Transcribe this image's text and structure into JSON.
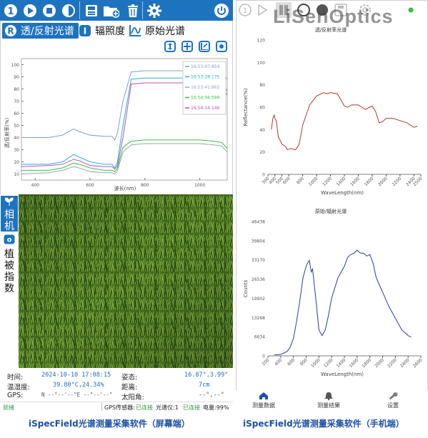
{
  "left_app": {
    "toolbar": {
      "icons": [
        "step-icon",
        "play-icon",
        "stop-icon",
        "half-circle-icon",
        "save-icon",
        "add-folder-icon",
        "trash-icon",
        "gear-icon",
        "power-icon"
      ],
      "step_glyph": "1"
    },
    "modes": [
      {
        "icon_letter": "R",
        "label": "透/反射光谱"
      },
      {
        "icon_letter": "I",
        "label": "辐照度"
      },
      {
        "icon_letter": "",
        "label": "原始光谱"
      }
    ],
    "zoom_icons": [
      "fit-vertical-icon",
      "pan-icon",
      "fit-horizontal-icon",
      "zoom-target-icon"
    ],
    "chart": {
      "ylabel": "透/反射率(%)",
      "xlabel": "波长(nm)",
      "x_ticks": [
        "400",
        "600",
        "800",
        "1000"
      ],
      "y_ticks": [
        "10",
        "20",
        "30",
        "40",
        "50",
        "60",
        "70",
        "80",
        "90",
        "100"
      ],
      "legend": [
        {
          "label": "16:53:07:854",
          "color": "#7f9fc9"
        },
        {
          "label": "16:53:28:175",
          "color": "#2ab0c8"
        },
        {
          "label": "16:53:41:862",
          "color": "#9aa4b5"
        },
        {
          "label": "16:54:04:599",
          "color": "#34c43c"
        },
        {
          "label": "16:54:14:146",
          "color": "#c54ac8"
        }
      ]
    },
    "side_tabs": [
      {
        "label": "相机"
      },
      {
        "icon_letter": "o",
        "label": "植被指数"
      }
    ],
    "info": {
      "time_label": "时间:",
      "time_value": "2024-10-10 17:08:15",
      "temp_label": "温湿度:",
      "temp_value": "39.80°C,24.34%",
      "gps_label": "GPS:",
      "gps_value": "N --°--'--\"E --°--'--\"",
      "pose_label": "姿态:",
      "pose_value": "16.87°,3.99°",
      "dist_label": "距离:",
      "dist_value": "7cm",
      "sun_label": "太阳角:",
      "sun_value": "--°,--°"
    },
    "status": {
      "ready": "就绪",
      "gps": "GPS传感器:",
      "gps_state": "已连接",
      "spec": "光谱仪:1",
      "spec_state": "已连接",
      "battery": "电量:99%"
    }
  },
  "right_app": {
    "toolbar_icons": [
      "step-icon",
      "play-icon",
      "layout-icon",
      "circle-icon",
      "half-circle-icon",
      "save-icon",
      "gear-icon",
      "status-dot-icon"
    ],
    "logo": "LiSenOptics",
    "chart_top": {
      "title": "透/反射率光谱",
      "ylabel": "Reflectance(%)",
      "xlabel": "WaveLength(nm)",
      "y_ticks": [
        "0",
        "20",
        "40",
        "60",
        "80",
        "100",
        "120"
      ],
      "x_ticks": [
        "300",
        "400",
        "500",
        "600",
        "800",
        "1000",
        "1200",
        "1400",
        "1600",
        "1800",
        "2000",
        "2200",
        "2400",
        "2500"
      ]
    },
    "chart_bottom": {
      "title": "原始/辐射光谱",
      "ylabel": "Counts",
      "xlabel": "WaveLength(nm)",
      "y_ticks": [
        "0",
        "6634",
        "13268",
        "19902",
        "26536",
        "33170",
        "39804",
        "46438"
      ],
      "x_ticks": [
        "200",
        "400",
        "600",
        "800",
        "1000",
        "1200",
        "1400",
        "1600",
        "1800",
        "2000",
        "2200",
        "2400",
        "2600"
      ]
    },
    "nav": [
      {
        "label": "测量数据",
        "icon": "home-icon"
      },
      {
        "label": "测量结果",
        "icon": "bell-icon"
      },
      {
        "label": "设置",
        "icon": "wrench-icon"
      }
    ]
  },
  "captions": {
    "left": "iSpecField光谱测量采集软件（屏幕端）",
    "right": "iSpecField光谱测量采集软件（手机端）"
  },
  "chart_data": [
    {
      "type": "line",
      "title": "",
      "xlabel": "波长(nm)",
      "ylabel": "透/反射率(%)",
      "xlim": [
        350,
        1100
      ],
      "ylim": [
        5,
        105
      ],
      "series": [
        {
          "name": "16:53:07:854",
          "x": [
            350,
            450,
            500,
            540,
            560,
            600,
            650,
            680,
            690,
            700,
            720,
            750,
            800,
            900,
            1000,
            1050,
            1080,
            1100
          ],
          "y": [
            40,
            40,
            42,
            47,
            45,
            42,
            41,
            41,
            38,
            44,
            70,
            94,
            95,
            95,
            95,
            95,
            94,
            88
          ]
        },
        {
          "name": "16:53:28:175",
          "x": [
            350,
            450,
            500,
            540,
            560,
            600,
            650,
            680,
            690,
            700,
            720,
            750,
            800,
            900,
            1000,
            1050,
            1080,
            1100
          ],
          "y": [
            18,
            18,
            20,
            26,
            24,
            20,
            18,
            18,
            15,
            20,
            50,
            88,
            89,
            89,
            89,
            88,
            87,
            78
          ]
        },
        {
          "name": "16:53:41:862",
          "x": [
            350,
            450,
            500,
            540,
            560,
            600,
            650,
            680,
            690,
            700,
            720,
            750,
            800,
            900,
            1000,
            1050,
            1080,
            1100
          ],
          "y": [
            10,
            11,
            13,
            16,
            15,
            12,
            11,
            11,
            10,
            13,
            28,
            34,
            35,
            35,
            35,
            34,
            33,
            28
          ]
        },
        {
          "name": "16:54:04:599",
          "x": [
            350,
            450,
            500,
            540,
            560,
            600,
            650,
            680,
            690,
            700,
            720,
            750,
            800,
            900,
            1000,
            1050,
            1080,
            1100
          ],
          "y": [
            13,
            13,
            15,
            19,
            18,
            15,
            13,
            13,
            12,
            15,
            32,
            37,
            38,
            38,
            38,
            37,
            36,
            31
          ]
        },
        {
          "name": "16:54:14:146",
          "x": [
            350,
            450,
            500,
            540,
            560,
            600,
            650,
            680,
            690,
            700,
            720,
            750,
            800,
            900,
            1000,
            1050,
            1080,
            1100
          ],
          "y": [
            16,
            17,
            18,
            22,
            21,
            17,
            16,
            16,
            14,
            17,
            40,
            84,
            85,
            85,
            85,
            84,
            83,
            75
          ]
        }
      ]
    },
    {
      "type": "line",
      "title": "透/反射率光谱",
      "xlabel": "WaveLength(nm)",
      "ylabel": "Reflectance(%)",
      "xlim": [
        300,
        2500
      ],
      "ylim": [
        0,
        120
      ],
      "series": [
        {
          "name": "",
          "x": [
            350,
            370,
            390,
            400,
            420,
            450,
            480,
            500,
            550,
            580,
            620,
            700,
            750,
            800,
            900,
            1000,
            1100,
            1150,
            1200,
            1300,
            1400,
            1450,
            1500,
            1600,
            1700,
            1800,
            1850,
            1900,
            1950,
            2000,
            2100,
            2200,
            2300,
            2350,
            2400,
            2450
          ],
          "y": [
            40,
            50,
            53,
            50,
            48,
            33,
            30,
            27,
            25,
            22,
            23,
            22,
            27,
            44,
            62,
            70,
            73,
            72,
            73,
            72,
            61,
            60,
            62,
            62,
            58,
            61,
            56,
            46,
            47,
            50,
            50,
            48,
            46,
            44,
            42,
            43
          ]
        }
      ]
    },
    {
      "type": "line",
      "title": "原始/辐射光谱",
      "xlabel": "WaveLength(nm)",
      "ylabel": "Counts",
      "xlim": [
        200,
        2600
      ],
      "ylim": [
        0,
        46438
      ],
      "series": [
        {
          "name": "",
          "x": [
            300,
            400,
            500,
            550,
            600,
            650,
            700,
            750,
            800,
            820,
            850,
            880,
            900,
            950,
            1000,
            1050,
            1100,
            1150,
            1200,
            1300,
            1400,
            1450,
            1500,
            1550,
            1600,
            1650,
            1700,
            1750,
            1800,
            1850,
            1900,
            2000,
            2100,
            2200,
            2300,
            2400,
            2450
          ],
          "y": [
            300,
            500,
            1500,
            3000,
            6000,
            12000,
            19000,
            27000,
            31000,
            32000,
            33000,
            29000,
            30000,
            20000,
            9000,
            7000,
            9000,
            14000,
            20000,
            27000,
            31000,
            34000,
            35000,
            35500,
            36500,
            35500,
            35500,
            34500,
            35000,
            32000,
            27000,
            22000,
            17000,
            13000,
            9000,
            7000,
            6500
          ]
        }
      ]
    }
  ]
}
